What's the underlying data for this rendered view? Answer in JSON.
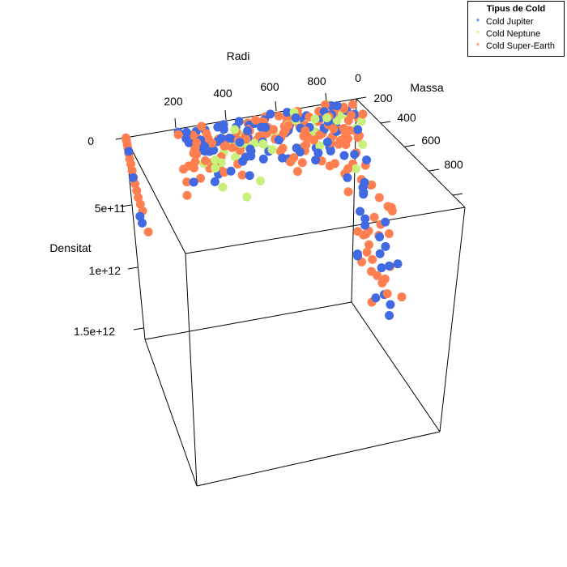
{
  "chart_data": {
    "type": "scatter",
    "title": "",
    "axes": {
      "x": {
        "label": "Radi",
        "ticks": [
          "200",
          "400",
          "600",
          "800"
        ],
        "range": [
          0,
          900
        ]
      },
      "y": {
        "label": "Massa",
        "ticks": [
          "0",
          "200",
          "400",
          "600",
          "800"
        ],
        "range": [
          0,
          900
        ]
      },
      "z": {
        "label": "Densitat",
        "ticks": [
          "0",
          "5e+11",
          "1e+12",
          "1.5e+12"
        ],
        "range": [
          0,
          1600000000000.0
        ]
      }
    },
    "legend": {
      "title": "Tipus de Cold",
      "position": "top-right",
      "entries": [
        {
          "name": "Cold Jupiter",
          "color": "#4169e1"
        },
        {
          "name": "Cold Neptune",
          "color": "#c8f07a"
        },
        {
          "name": "Cold Super-Earth",
          "color": "#ff7f50"
        }
      ]
    },
    "grid": false,
    "point_groups": [
      {
        "series": "Cold Super-Earth",
        "description": "cluster along radius ≈ 0, mass ≈ 0 with increasing density",
        "points": [
          [
            1,
            2,
            0.0
          ],
          [
            2,
            3,
            20000000000.0
          ],
          [
            3,
            4,
            50000000000.0
          ],
          [
            4,
            5,
            80000000000.0
          ],
          [
            5,
            8,
            120000000000.0
          ],
          [
            6,
            10,
            160000000000.0
          ],
          [
            8,
            12,
            200000000000.0
          ],
          [
            10,
            15,
            250000000000.0
          ],
          [
            12,
            18,
            300000000000.0
          ],
          [
            15,
            20,
            350000000000.0
          ],
          [
            18,
            25,
            400000000000.0
          ],
          [
            20,
            30,
            450000000000.0
          ],
          [
            25,
            35,
            500000000000.0
          ],
          [
            30,
            40,
            550000000000.0
          ],
          [
            40,
            60,
            700000000000.0
          ]
        ]
      },
      {
        "series": "Cold Jupiter",
        "description": "low-radius, high-density tail",
        "points": [
          [
            5,
            10,
            100000000000.0
          ],
          [
            10,
            20,
            300000000000.0
          ],
          [
            20,
            30,
            600000000000.0
          ],
          [
            25,
            35,
            650000000000.0
          ]
        ]
      }
    ]
  }
}
